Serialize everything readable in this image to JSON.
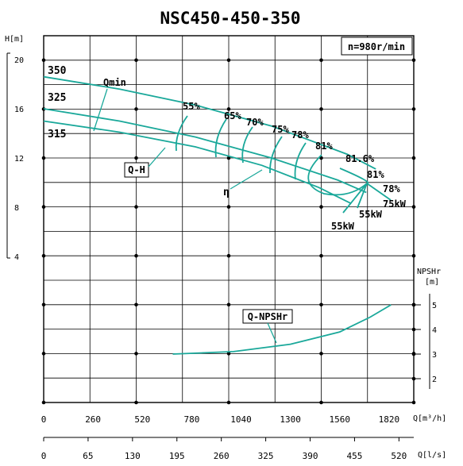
{
  "chart_data": {
    "type": "line",
    "title": "NSC450-450-350",
    "speed": "n=980r/min",
    "y_label_head": "H[m]",
    "y_label_npsh_line1": "NPSHr",
    "y_label_npsh_line2": "[m]",
    "x_label_flow_m3h": "Q[m³/h]",
    "x_label_flow_ls": "Q[l/s]",
    "x_ticks_m3h": [
      "0",
      "260",
      "520",
      "780",
      "1040",
      "1300",
      "1560",
      "1820"
    ],
    "x_ticks_ls": [
      "0",
      "65",
      "130",
      "195",
      "260",
      "325",
      "390",
      "455",
      "520"
    ],
    "y_ticks_head": [
      "20",
      "16",
      "12",
      "8",
      "4"
    ],
    "y_ticks_npsh": [
      "5",
      "4",
      "3",
      "2"
    ],
    "xlim_m3h": [
      0,
      1950
    ],
    "ylim_head": [
      4,
      20
    ],
    "ylim_npsh": [
      1.5,
      5.5
    ],
    "impellers": [
      "350",
      "325",
      "315"
    ],
    "qmin_label": "Qmin",
    "qh_label": "Q-H",
    "eta_label": "η",
    "npsh_label": "Q-NPSHr",
    "efficiency_labels": [
      "55%",
      "65%",
      "70%",
      "75%",
      "78%",
      "81%",
      "81.6%",
      "81%",
      "78%"
    ],
    "power_labels": [
      "75kW",
      "55kW",
      "55kW"
    ],
    "series": [
      {
        "name": "350",
        "x": [
          0,
          400,
          800,
          1200,
          1600,
          1750
        ],
        "y": [
          18.6,
          17.6,
          16.3,
          14.6,
          12.3,
          11.1
        ]
      },
      {
        "name": "325",
        "x": [
          0,
          400,
          800,
          1200,
          1550,
          1700
        ],
        "y": [
          16.0,
          15.0,
          13.7,
          12.0,
          10.2,
          9.2
        ]
      },
      {
        "name": "315",
        "x": [
          0,
          400,
          800,
          1150,
          1450,
          1620
        ],
        "y": [
          15.0,
          14.1,
          12.9,
          11.4,
          9.6,
          8.3
        ]
      },
      {
        "name": "Q-NPSHr",
        "x": [
          680,
          1000,
          1300,
          1560,
          1720,
          1830
        ],
        "y": [
          3.0,
          3.1,
          3.4,
          3.9,
          4.5,
          5.0
        ]
      }
    ]
  }
}
